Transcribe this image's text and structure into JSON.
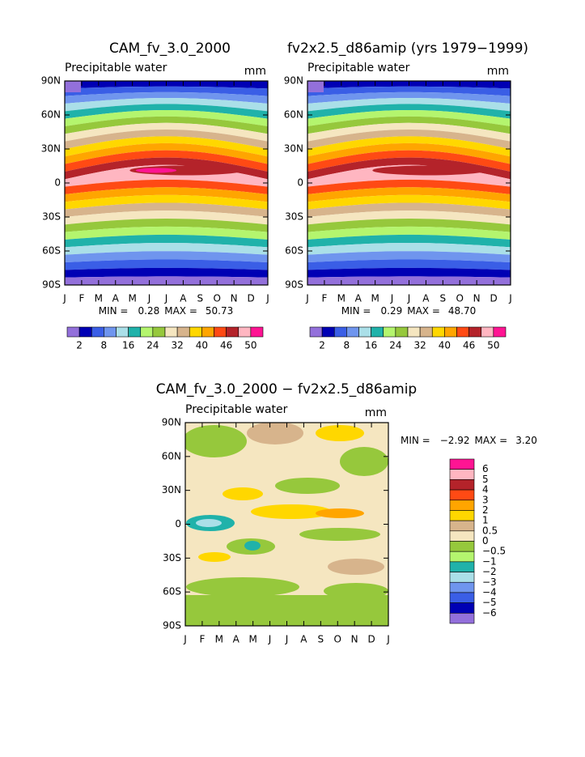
{
  "chart_data": [
    {
      "type": "contour",
      "title": "CAM_fv_3.0_2000",
      "label": "Precipitable water",
      "units": "mm",
      "x": [
        "J",
        "F",
        "M",
        "A",
        "M",
        "J",
        "J",
        "A",
        "S",
        "O",
        "N",
        "D",
        "J"
      ],
      "ylim": [
        -90,
        90
      ],
      "yticks": [
        {
          "value": -90,
          "label": "90S"
        },
        {
          "value": -60,
          "label": "60S"
        },
        {
          "value": -30,
          "label": "30S"
        },
        0,
        {
          "value": 30,
          "label": "30N"
        },
        {
          "value": 60,
          "label": "60N"
        },
        {
          "value": 90,
          "label": "90N"
        }
      ],
      "min_label": "MIN =",
      "min": 0.28,
      "max_label": "MAX =",
      "max": 50.73,
      "colorbar": "bottom",
      "colors": [
        "#9370db",
        "#0000b4",
        "#3a5ee6",
        "#6f95ee",
        "#aadfe8",
        "#20b2aa",
        "#b4f56e",
        "#96c83c",
        "#f5e6c0",
        "#d7b48c",
        "#ffd700",
        "#ffa500",
        "#ff4a14",
        "#b4232a",
        "#ffb6c1",
        "#ff1493"
      ],
      "colorbar_ticks": [
        2,
        8,
        16,
        24,
        32,
        40,
        46,
        50
      ]
    },
    {
      "type": "contour",
      "title": "fv2x2.5_d86amip (yrs 1979−1999)",
      "label": "Precipitable water",
      "units": "mm",
      "x": [
        "J",
        "F",
        "M",
        "A",
        "M",
        "J",
        "J",
        "A",
        "S",
        "O",
        "N",
        "D",
        "J"
      ],
      "ylim": [
        -90,
        90
      ],
      "yticks": [
        {
          "value": -90,
          "label": "90S"
        },
        {
          "value": -60,
          "label": "60S"
        },
        {
          "value": -30,
          "label": "30S"
        },
        0,
        {
          "value": 30,
          "label": "30N"
        },
        {
          "value": 60,
          "label": "60N"
        },
        {
          "value": 90,
          "label": "90N"
        }
      ],
      "min_label": "MIN =",
      "min": 0.29,
      "max_label": "MAX =",
      "max": {
        "value": 48.7,
        "label": "48.70"
      },
      "colorbar": "bottom",
      "colors": [
        "#9370db",
        "#0000b4",
        "#3a5ee6",
        "#6f95ee",
        "#aadfe8",
        "#20b2aa",
        "#b4f56e",
        "#96c83c",
        "#f5e6c0",
        "#d7b48c",
        "#ffd700",
        "#ffa500",
        "#ff4a14",
        "#b4232a",
        "#ffb6c1",
        "#ff1493"
      ],
      "colorbar_ticks": [
        2,
        8,
        16,
        24,
        32,
        40,
        46,
        50
      ]
    },
    {
      "type": "difference-contour",
      "title": "CAM_fv_3.0_2000 − fv2x2.5_d86amip",
      "label": "Precipitable water",
      "units": "mm",
      "x": [
        "J",
        "F",
        "M",
        "A",
        "M",
        "J",
        "J",
        "A",
        "S",
        "O",
        "N",
        "D",
        "J"
      ],
      "ylim": [
        -90,
        90
      ],
      "yticks": [
        {
          "value": -90,
          "label": "90S"
        },
        {
          "value": -60,
          "label": "60S"
        },
        {
          "value": -30,
          "label": "30S"
        },
        0,
        {
          "value": 30,
          "label": "30N"
        },
        {
          "value": 60,
          "label": "60N"
        },
        {
          "value": 90,
          "label": "90N"
        }
      ],
      "min_label": "MIN =",
      "min": {
        "value": -2.92,
        "label": "−2.92"
      },
      "max_label": "MAX =",
      "max": {
        "value": 3.2,
        "label": "3.20"
      },
      "colorbar": "right",
      "colors": [
        "#ff1493",
        "#ffb6c1",
        "#b4232a",
        "#ff4a14",
        "#ffa500",
        "#ffd700",
        "#d7b48c",
        "#f5e6c0",
        "#96c83c",
        "#b4f56e",
        "#20b2aa",
        "#aadfe8",
        "#6f95ee",
        "#3a5ee6",
        "#0000b4",
        "#9370db"
      ],
      "colorbar_ticks": [
        6,
        5,
        4,
        3,
        2,
        1,
        0.5,
        0,
        {
          "value": -0.5,
          "label": "−0.5"
        },
        {
          "value": -1,
          "label": "−1"
        },
        {
          "value": -2,
          "label": "−2"
        },
        {
          "value": -3,
          "label": "−3"
        },
        {
          "value": -4,
          "label": "−4"
        },
        {
          "value": -5,
          "label": "−5"
        },
        {
          "value": -6,
          "label": "−6"
        }
      ]
    }
  ]
}
